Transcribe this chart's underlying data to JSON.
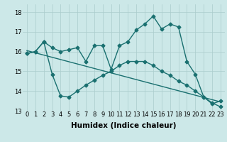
{
  "xlabel": "Humidex (Indice chaleur)",
  "bg_color": "#cce8e8",
  "line_color": "#1a7070",
  "grid_color": "#aacccc",
  "ylim": [
    13,
    18.4
  ],
  "xlim": [
    -0.5,
    23.5
  ],
  "yticks": [
    13,
    14,
    15,
    16,
    17,
    18
  ],
  "xticks": [
    0,
    1,
    2,
    3,
    4,
    5,
    6,
    7,
    8,
    9,
    10,
    11,
    12,
    13,
    14,
    15,
    16,
    17,
    18,
    19,
    20,
    21,
    22,
    23
  ],
  "line1_x": [
    0,
    1,
    2,
    3,
    4,
    5,
    6,
    7,
    8,
    9,
    10,
    11,
    12,
    13,
    14,
    15,
    16,
    17,
    18,
    19,
    20,
    21,
    22,
    23
  ],
  "line1_y": [
    15.9,
    16.0,
    16.5,
    16.2,
    16.0,
    16.1,
    16.2,
    15.5,
    16.3,
    16.3,
    15.1,
    16.3,
    16.5,
    17.1,
    17.4,
    17.8,
    17.15,
    17.4,
    17.25,
    15.5,
    14.85,
    13.7,
    13.35,
    13.5
  ],
  "line2_x": [
    0,
    23
  ],
  "line2_y": [
    16.05,
    13.45
  ],
  "line3_x": [
    0,
    1,
    2,
    3,
    4,
    5,
    6,
    7,
    8,
    9,
    10,
    11,
    12,
    13,
    14,
    15,
    16,
    17,
    18,
    19,
    20,
    21,
    22,
    23
  ],
  "line3_y": [
    15.9,
    16.0,
    16.5,
    14.85,
    13.75,
    13.7,
    14.0,
    14.3,
    14.55,
    14.8,
    15.0,
    15.3,
    15.5,
    15.5,
    15.5,
    15.3,
    15.0,
    14.8,
    14.5,
    14.3,
    14.0,
    13.7,
    13.4,
    13.2
  ],
  "marker": "D",
  "markersize": 2.5,
  "linewidth": 1.0,
  "tick_fontsize": 6,
  "xlabel_fontsize": 7.5
}
